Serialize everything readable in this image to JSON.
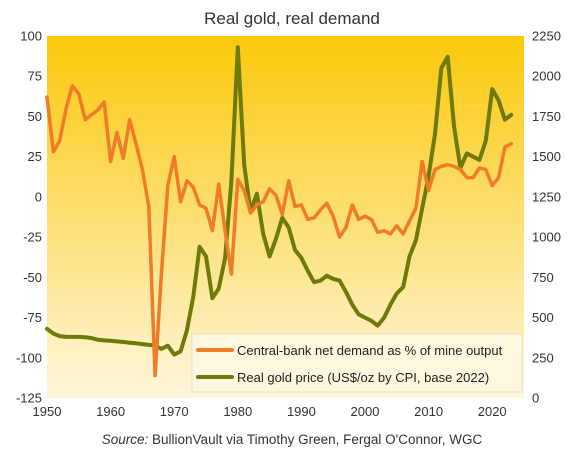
{
  "chart_data": {
    "type": "line",
    "title": "Real gold, real demand",
    "source_prefix": "Source:",
    "source_text": " BullionVault via Timothy Green, Fergal O'Connor, WGC",
    "x_ticks": [
      "1950",
      "1960",
      "1970",
      "1980",
      "1990",
      "2000",
      "2010",
      "2020"
    ],
    "xlim": [
      1950,
      2025
    ],
    "y_left_ticks": [
      "100",
      "75",
      "50",
      "25",
      "0",
      "-25",
      "-50",
      "-75",
      "-100",
      "-125"
    ],
    "ylim_left": [
      -125,
      100
    ],
    "y_right_ticks": [
      "2250",
      "2000",
      "1750",
      "1500",
      "1250",
      "1000",
      "750",
      "500",
      "250",
      "0"
    ],
    "ylim_right": [
      0,
      2250
    ],
    "grid": false,
    "legend_position": "bottom-right",
    "background_gradient": [
      "#fbc80a",
      "#fef6dc"
    ],
    "series": [
      {
        "name": "Central-bank net demand as % of mine output",
        "axis": "left",
        "color": "#f07c28",
        "x": [
          1950,
          1951,
          1952,
          1953,
          1954,
          1955,
          1956,
          1957,
          1958,
          1959,
          1960,
          1961,
          1962,
          1963,
          1964,
          1965,
          1966,
          1967,
          1968,
          1969,
          1970,
          1971,
          1972,
          1973,
          1974,
          1975,
          1976,
          1977,
          1978,
          1979,
          1980,
          1981,
          1982,
          1983,
          1984,
          1985,
          1986,
          1987,
          1988,
          1989,
          1990,
          1991,
          1992,
          1993,
          1994,
          1995,
          1996,
          1997,
          1998,
          1999,
          2000,
          2001,
          2002,
          2003,
          2004,
          2005,
          2006,
          2007,
          2008,
          2009,
          2010,
          2011,
          2012,
          2013,
          2014,
          2015,
          2016,
          2017,
          2018,
          2019,
          2020,
          2021,
          2022,
          2023
        ],
        "values": [
          62,
          28,
          35,
          55,
          69,
          64,
          48,
          51,
          54,
          59,
          22,
          40,
          24,
          48,
          33,
          17,
          -6,
          -111,
          -47,
          7,
          25,
          -3,
          10,
          6,
          -5,
          -7,
          -21,
          8,
          -21,
          -48,
          11,
          4,
          -10,
          -5,
          -3,
          5,
          1,
          -11,
          10,
          -6,
          -5,
          -14,
          -13,
          -8,
          -4,
          -12,
          -25,
          -19,
          -5,
          -14,
          -12,
          -14,
          -22,
          -21,
          -23,
          -18,
          -23,
          -15,
          -7,
          22,
          4,
          17,
          19,
          20,
          19,
          17,
          12,
          12,
          18,
          17,
          7,
          12,
          31,
          33
        ]
      },
      {
        "name": "Real gold price (US$/oz by CPI, base 2022)",
        "axis": "right",
        "color": "#6e7a0a",
        "x": [
          1950,
          1951,
          1952,
          1953,
          1954,
          1955,
          1956,
          1957,
          1958,
          1959,
          1960,
          1961,
          1962,
          1963,
          1964,
          1965,
          1966,
          1967,
          1968,
          1969,
          1970,
          1971,
          1972,
          1973,
          1974,
          1975,
          1976,
          1977,
          1978,
          1979,
          1980,
          1981,
          1982,
          1983,
          1984,
          1985,
          1986,
          1987,
          1988,
          1989,
          1990,
          1991,
          1992,
          1993,
          1994,
          1995,
          1996,
          1997,
          1998,
          1999,
          2000,
          2001,
          2002,
          2003,
          2004,
          2005,
          2006,
          2007,
          2008,
          2009,
          2010,
          2011,
          2012,
          2013,
          2014,
          2015,
          2016,
          2017,
          2018,
          2019,
          2020,
          2021,
          2022,
          2023
        ],
        "values": [
          430,
          400,
          385,
          380,
          380,
          380,
          378,
          372,
          362,
          358,
          356,
          352,
          348,
          344,
          340,
          335,
          330,
          325,
          305,
          325,
          270,
          290,
          420,
          630,
          940,
          880,
          620,
          680,
          870,
          1350,
          2180,
          1450,
          1160,
          1270,
          1020,
          880,
          990,
          1120,
          1060,
          920,
          870,
          790,
          720,
          730,
          760,
          740,
          730,
          660,
          580,
          520,
          500,
          480,
          450,
          500,
          580,
          650,
          690,
          880,
          980,
          1180,
          1380,
          1640,
          2050,
          2120,
          1690,
          1430,
          1520,
          1500,
          1480,
          1600,
          1920,
          1850,
          1730,
          1760
        ]
      }
    ]
  }
}
